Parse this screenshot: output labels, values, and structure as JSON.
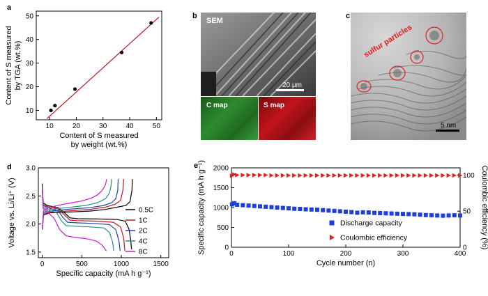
{
  "panels": {
    "a": "a",
    "b": "b",
    "c": "c",
    "d": "d",
    "e": "e"
  },
  "sem": {
    "title": "SEM",
    "scalebar": "20 μm",
    "c_map": "C map",
    "s_map": "S map",
    "c_map_color": "#2e8b2e",
    "s_map_color": "#c0141a"
  },
  "tem": {
    "annotation": "sulfur particles",
    "scalebar": "5 nm",
    "annotation_color": "#e0201c"
  },
  "chart_data": [
    {
      "id": "a",
      "type": "scatter",
      "xlabel_line1": "Content of S measured",
      "xlabel_line2": "by weight (wt.%)",
      "ylabel_line1": "Content of S measured",
      "ylabel_line2": "by TGA (wt.%)",
      "xlim": [
        5,
        52
      ],
      "ylim": [
        6,
        52
      ],
      "xticks": [
        10,
        20,
        30,
        40,
        50
      ],
      "yticks": [
        10,
        20,
        30,
        40,
        50
      ],
      "points": [
        [
          10.5,
          10
        ],
        [
          12,
          12
        ],
        [
          19.5,
          19
        ],
        [
          37,
          34.5
        ],
        [
          48,
          47
        ]
      ],
      "fit_line": [
        [
          9,
          6.5
        ],
        [
          51,
          49.5
        ]
      ],
      "point_color": "#000000",
      "line_color": "#c0141a"
    },
    {
      "id": "d",
      "type": "line",
      "xlabel": "Specific capacity (mA h g⁻¹)",
      "ylabel": "Voltage vs. Li/Li⁺ (V)",
      "xlim": [
        -50,
        1600
      ],
      "ylim": [
        1.4,
        3.0
      ],
      "xticks": [
        0,
        500,
        1000,
        1500
      ],
      "yticks": [
        1.5,
        2.0,
        2.5,
        3.0
      ],
      "ytick_labels": [
        "1.5",
        "2.0",
        "2.5",
        "3.0"
      ],
      "series": [
        {
          "name": "0.5C",
          "color": "#000000",
          "discharge": [
            [
              0,
              2.72
            ],
            [
              10,
              2.38
            ],
            [
              60,
              2.33
            ],
            [
              200,
              2.29
            ],
            [
              280,
              2.2
            ],
            [
              350,
              2.11
            ],
            [
              450,
              2.095
            ],
            [
              700,
              2.09
            ],
            [
              950,
              2.08
            ],
            [
              1050,
              2.05
            ],
            [
              1100,
              1.9
            ],
            [
              1120,
              1.7
            ],
            [
              1130,
              1.55
            ]
          ],
          "charge": [
            [
              0,
              1.9
            ],
            [
              15,
              2.16
            ],
            [
              100,
              2.2
            ],
            [
              300,
              2.21
            ],
            [
              600,
              2.23
            ],
            [
              800,
              2.26
            ],
            [
              950,
              2.3
            ],
            [
              1060,
              2.33
            ],
            [
              1110,
              2.4
            ],
            [
              1135,
              2.6
            ],
            [
              1140,
              2.8
            ]
          ]
        },
        {
          "name": "1C",
          "color": "#c0141a",
          "discharge": [
            [
              0,
              2.7
            ],
            [
              10,
              2.35
            ],
            [
              60,
              2.31
            ],
            [
              200,
              2.27
            ],
            [
              280,
              2.16
            ],
            [
              350,
              2.07
            ],
            [
              450,
              2.06
            ],
            [
              700,
              2.05
            ],
            [
              900,
              2.03
            ],
            [
              990,
              1.95
            ],
            [
              1030,
              1.75
            ],
            [
              1045,
              1.52
            ]
          ],
          "charge": [
            [
              0,
              1.9
            ],
            [
              15,
              2.17
            ],
            [
              100,
              2.21
            ],
            [
              300,
              2.23
            ],
            [
              600,
              2.26
            ],
            [
              800,
              2.3
            ],
            [
              920,
              2.35
            ],
            [
              990,
              2.42
            ],
            [
              1020,
              2.6
            ],
            [
              1030,
              2.8
            ]
          ]
        },
        {
          "name": "2C",
          "color": "#1f3fb4",
          "discharge": [
            [
              0,
              2.68
            ],
            [
              10,
              2.33
            ],
            [
              60,
              2.29
            ],
            [
              200,
              2.24
            ],
            [
              260,
              2.12
            ],
            [
              320,
              2.03
            ],
            [
              450,
              2.02
            ],
            [
              650,
              2.01
            ],
            [
              850,
              1.99
            ],
            [
              930,
              1.9
            ],
            [
              970,
              1.7
            ],
            [
              985,
              1.52
            ]
          ],
          "charge": [
            [
              0,
              1.9
            ],
            [
              15,
              2.19
            ],
            [
              100,
              2.23
            ],
            [
              300,
              2.26
            ],
            [
              600,
              2.29
            ],
            [
              780,
              2.33
            ],
            [
              880,
              2.38
            ],
            [
              930,
              2.45
            ],
            [
              955,
              2.6
            ],
            [
              960,
              2.8
            ]
          ]
        },
        {
          "name": "4C",
          "color": "#2a8a8a",
          "discharge": [
            [
              0,
              2.65
            ],
            [
              10,
              2.3
            ],
            [
              60,
              2.26
            ],
            [
              180,
              2.2
            ],
            [
              240,
              2.06
            ],
            [
              300,
              1.97
            ],
            [
              420,
              1.96
            ],
            [
              600,
              1.95
            ],
            [
              780,
              1.93
            ],
            [
              850,
              1.85
            ],
            [
              890,
              1.68
            ],
            [
              905,
              1.52
            ]
          ],
          "charge": [
            [
              0,
              1.9
            ],
            [
              15,
              2.21
            ],
            [
              100,
              2.26
            ],
            [
              300,
              2.29
            ],
            [
              550,
              2.33
            ],
            [
              700,
              2.38
            ],
            [
              800,
              2.45
            ],
            [
              850,
              2.55
            ],
            [
              870,
              2.68
            ],
            [
              875,
              2.8
            ]
          ]
        },
        {
          "name": "8C",
          "color": "#c81cc8",
          "discharge": [
            [
              0,
              2.6
            ],
            [
              10,
              2.28
            ],
            [
              60,
              2.22
            ],
            [
              150,
              2.1
            ],
            [
              220,
              1.9
            ],
            [
              300,
              1.79
            ],
            [
              420,
              1.76
            ],
            [
              550,
              1.74
            ],
            [
              680,
              1.7
            ],
            [
              760,
              1.62
            ],
            [
              810,
              1.52
            ]
          ],
          "charge": [
            [
              0,
              1.9
            ],
            [
              15,
              2.24
            ],
            [
              100,
              2.3
            ],
            [
              300,
              2.36
            ],
            [
              500,
              2.41
            ],
            [
              620,
              2.46
            ],
            [
              700,
              2.52
            ],
            [
              760,
              2.6
            ],
            [
              800,
              2.7
            ],
            [
              815,
              2.8
            ]
          ]
        }
      ]
    },
    {
      "id": "e",
      "type": "scatter",
      "xlabel": "Cycle number (n)",
      "ylabel": "Specific capacity (mA h g⁻¹)",
      "y2label": "Coulombic efficiency (%)",
      "xlim": [
        0,
        400
      ],
      "ylim": [
        0,
        2000
      ],
      "y2lim": [
        0,
        110
      ],
      "xticks": [
        0,
        100,
        200,
        300,
        400
      ],
      "yticks": [
        0,
        500,
        1000,
        1500,
        2000
      ],
      "y2ticks": [
        0,
        50,
        100
      ],
      "series": [
        {
          "name": "Discharge capacity",
          "axis": "left",
          "marker": "square",
          "color": "#1f3fdc",
          "x": [
            1,
            5,
            10,
            20,
            30,
            40,
            50,
            60,
            70,
            80,
            90,
            100,
            110,
            120,
            130,
            140,
            150,
            160,
            170,
            180,
            190,
            200,
            210,
            220,
            230,
            240,
            250,
            260,
            270,
            280,
            290,
            300,
            310,
            320,
            330,
            340,
            350,
            360,
            370,
            380,
            390,
            400
          ],
          "y": [
            1080,
            1110,
            1070,
            1060,
            1050,
            1040,
            1030,
            1020,
            1010,
            1000,
            990,
            980,
            970,
            965,
            955,
            950,
            945,
            935,
            925,
            915,
            905,
            895,
            885,
            870,
            880,
            875,
            865,
            860,
            855,
            850,
            845,
            840,
            835,
            830,
            820,
            810,
            805,
            800,
            795,
            800,
            805,
            800
          ]
        },
        {
          "name": "Coulombic efficiency",
          "axis": "right",
          "marker": "triangle-right",
          "color": "#e0201c",
          "x": [
            1,
            5,
            10,
            20,
            30,
            40,
            50,
            60,
            70,
            80,
            90,
            100,
            110,
            120,
            130,
            140,
            150,
            160,
            170,
            180,
            190,
            200,
            210,
            220,
            230,
            240,
            250,
            260,
            270,
            280,
            290,
            300,
            310,
            320,
            330,
            340,
            350,
            360,
            370,
            380,
            390,
            400
          ],
          "y": [
            99,
            101,
            100,
            100,
            100,
            100,
            100,
            100,
            99.5,
            99.5,
            99.5,
            99.5,
            99.5,
            99.5,
            99.5,
            99.5,
            99.5,
            99.5,
            99.5,
            99.5,
            99.5,
            99.5,
            99.5,
            99.5,
            99.5,
            99.5,
            99.5,
            99.5,
            99.5,
            99.5,
            99.5,
            99.5,
            99.5,
            99.5,
            99.5,
            99.5,
            99.5,
            99.5,
            99.5,
            99.5,
            99.5,
            99.5
          ]
        }
      ]
    }
  ]
}
